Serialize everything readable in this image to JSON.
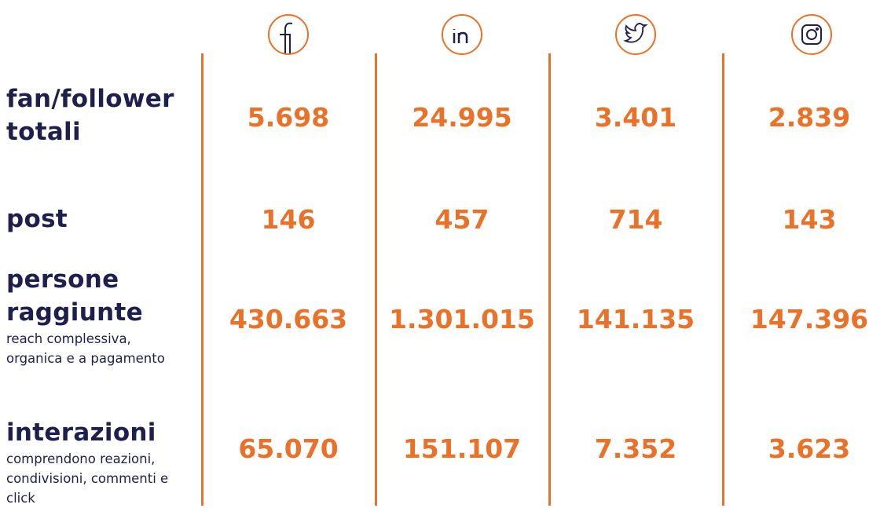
{
  "table": {
    "rows": [
      {
        "label": "fan/follower totali",
        "values": [
          "5.698",
          "24.995",
          "3.401",
          "2.839"
        ]
      },
      {
        "label": "post",
        "values": [
          "146",
          "457",
          "714",
          "143"
        ]
      },
      {
        "label": "persone raggiunte",
        "note": "reach complessiva, organica e a pagamento",
        "values": [
          "430.663",
          "1.301.015",
          "141.135",
          "147.396"
        ]
      },
      {
        "label": "interazioni",
        "note": "comprendono reazioni, condivisioni, commenti e click",
        "values": [
          "65.070",
          "151.107",
          "7.352",
          "3.623"
        ]
      }
    ]
  }
}
